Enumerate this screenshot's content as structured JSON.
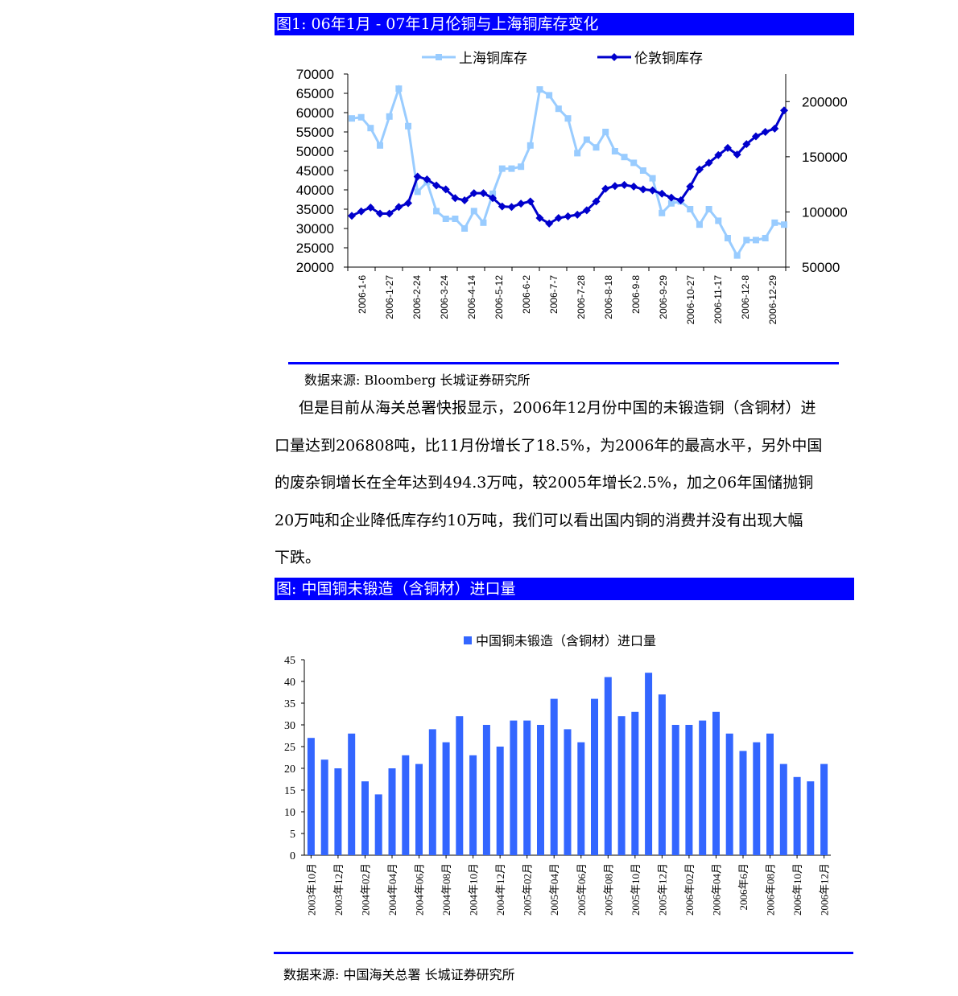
{
  "figure1": {
    "title": "图1: 06年1月 - 07年1月伦铜与上海铜库存变化",
    "source": "数据来源: Bloomberg  长城证券研究所"
  },
  "paragraph": {
    "lines": [
      "但是目前从海关总署快报显示，2006年12月份中国的未锻造铜（含铜材）进",
      "口量达到206808吨，比11月份增长了18.5%，为2006年的最高水平，另外中国",
      "的废杂铜增长在全年达到494.3万吨，较2005年增长2.5%，加之06年国储抛铜",
      "20万吨和企业降低库存约10万吨，我们可以看出国内铜的消费并没有出现大幅",
      "下跌。"
    ]
  },
  "figure2": {
    "title": "图: 中国铜未锻造（含铜材）进口量",
    "source": "数据来源: 中国海关总署  长城证券研究所"
  },
  "chart_data": [
    {
      "type": "line",
      "title": "",
      "series": [
        {
          "name": "上海铜库存",
          "axis": "left",
          "color": "#99ccff",
          "marker": "square",
          "values": [
            58500,
            58800,
            56000,
            51500,
            59000,
            66200,
            56500,
            39500,
            42000,
            34500,
            32500,
            32500,
            30000,
            34500,
            31500,
            39000,
            45500,
            45500,
            46000,
            51500,
            66000,
            64500,
            61000,
            58500,
            49500,
            53000,
            51000,
            55000,
            50000,
            48500,
            47000,
            45000,
            43000,
            34000,
            36500,
            37000,
            35000,
            31000,
            35000,
            32000,
            27500,
            23000,
            27000,
            27000,
            27500,
            31500,
            31000
          ]
        },
        {
          "name": "伦敦铜库存",
          "axis": "right",
          "color": "#0000cc",
          "marker": "diamond",
          "values": [
            96500,
            100500,
            104000,
            98500,
            98500,
            104500,
            108000,
            132000,
            129500,
            124000,
            120500,
            112500,
            110500,
            117000,
            117000,
            112500,
            105000,
            104500,
            107500,
            109500,
            94500,
            89500,
            94500,
            96000,
            97500,
            101500,
            109500,
            121000,
            123500,
            124500,
            123000,
            120500,
            119500,
            116500,
            113000,
            110500,
            123000,
            138500,
            144500,
            151500,
            158000,
            152000,
            161500,
            168500,
            172500,
            175500,
            192000
          ]
        }
      ],
      "x_tick_labels": [
        "2006-1-6",
        "2006-1-27",
        "2006-2-24",
        "2006-3-24",
        "2006-4-14",
        "2006-5-12",
        "2006-6-2",
        "2006-7-7",
        "2006-7-28",
        "2006-8-18",
        "2006-9-8",
        "2006-9-29",
        "2006-10-27",
        "2006-11-17",
        "2006-12-8",
        "2006-12-29"
      ],
      "y_left": {
        "min": 20000,
        "max": 70000,
        "ticks": [
          "20000",
          "25000",
          "30000",
          "35000",
          "40000",
          "45000",
          "50000",
          "55000",
          "60000",
          "65000",
          "70000"
        ]
      },
      "y_right": {
        "min": 50000,
        "max": 225000,
        "ticks": [
          "50000",
          "100000",
          "150000",
          "200000"
        ]
      },
      "legend": "top",
      "grid": false
    },
    {
      "type": "bar",
      "title": "",
      "color": "#3366ff",
      "series": [
        {
          "name": "中国铜未锻造（含铜材）进口量",
          "values": [
            27,
            22,
            20,
            28,
            17,
            14,
            20,
            23,
            21,
            29,
            26,
            32,
            23,
            30,
            25,
            31,
            31,
            30,
            36,
            29,
            26,
            36,
            41,
            32,
            33,
            42,
            37,
            30,
            30,
            31,
            33,
            28,
            24,
            26,
            28,
            21,
            18,
            17,
            21
          ]
        }
      ],
      "x_tick_labels": [
        "2003年10月",
        "2003年12月",
        "2004年02月",
        "2004年04月",
        "2004年06月",
        "2004年08月",
        "2004年10月",
        "2004年12月",
        "2005年02月",
        "2005年04月",
        "2005年06月",
        "2005年08月",
        "2005年10月",
        "2005年12月",
        "2006年02月",
        "2006年04月",
        "2006年6月",
        "2006年08月",
        "2006年10月",
        "2006年12月"
      ],
      "ylim": [
        0,
        45
      ],
      "y_ticks": [
        "0",
        "5",
        "10",
        "15",
        "20",
        "25",
        "30",
        "35",
        "40",
        "45"
      ],
      "legend": "top",
      "grid": false
    }
  ]
}
